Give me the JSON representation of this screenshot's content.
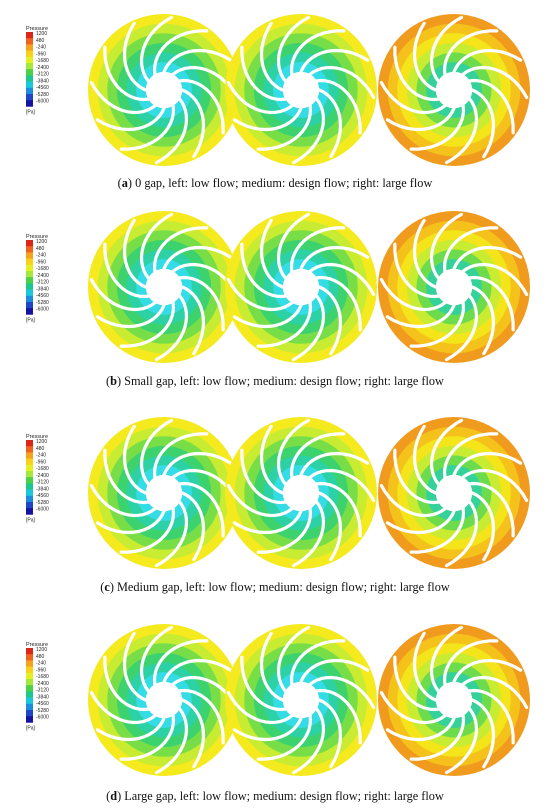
{
  "legend": {
    "title": "Pressure",
    "unit": "[Pa]",
    "ticks": [
      "1200",
      "480",
      "-240",
      "-960",
      "-1680",
      "-2400",
      "-3120",
      "-3840",
      "-4560",
      "-5280",
      "-6000"
    ],
    "colors": [
      "#d9261c",
      "#f0641e",
      "#f5a21e",
      "#f8d21a",
      "#e6f01e",
      "#a8e83c",
      "#4cd24a",
      "#1ec88c",
      "#1ec8dc",
      "#1e8cdc",
      "#1e46c8",
      "#1414a0"
    ]
  },
  "panels": [
    {
      "letter": "a",
      "caption": "0 gap, left: low flow; medium: design flow; right: large flow",
      "impellers": [
        {
          "condition": "low flow",
          "rings": [
            "#f4ea1e",
            "#c8ec32",
            "#78de48",
            "#3cd26e",
            "#2cd2a6",
            "#34dce6"
          ]
        },
        {
          "condition": "design flow",
          "rings": [
            "#f4ea1e",
            "#c8ec32",
            "#78de48",
            "#3cd26e",
            "#2cd2a6",
            "#34dce6"
          ]
        },
        {
          "condition": "large flow",
          "rings": [
            "#f09a1e",
            "#f4c21a",
            "#f4e41a",
            "#c8ec32",
            "#6cdc4c",
            "#34d29a"
          ]
        }
      ]
    },
    {
      "letter": "b",
      "caption": "Small gap, left: low flow; medium: design flow; right: large flow",
      "impellers": [
        {
          "condition": "low flow",
          "rings": [
            "#f4ea1e",
            "#c8ec32",
            "#78de48",
            "#3cd26e",
            "#2cd2a6",
            "#34dce6"
          ]
        },
        {
          "condition": "design flow",
          "rings": [
            "#f4ea1e",
            "#c8ec32",
            "#78de48",
            "#3cd26e",
            "#2cd2a6",
            "#34dce6"
          ]
        },
        {
          "condition": "large flow",
          "rings": [
            "#f09a1e",
            "#f4c21a",
            "#f4e41a",
            "#c8ec32",
            "#6cdc4c",
            "#34d29a"
          ]
        }
      ]
    },
    {
      "letter": "c",
      "caption": "Medium gap, left: low flow; medium: design flow; right: large flow",
      "impellers": [
        {
          "condition": "low flow",
          "rings": [
            "#f4ea1e",
            "#c8ec32",
            "#78de48",
            "#3cd26e",
            "#2cd2a6",
            "#34dce6"
          ]
        },
        {
          "condition": "design flow",
          "rings": [
            "#f4ea1e",
            "#c8ec32",
            "#78de48",
            "#3cd26e",
            "#2cd2a6",
            "#34dce6"
          ]
        },
        {
          "condition": "large flow",
          "rings": [
            "#f09a1e",
            "#f4c21a",
            "#f4e41a",
            "#c8ec32",
            "#6cdc4c",
            "#34d29a"
          ]
        }
      ]
    },
    {
      "letter": "d",
      "caption": "Large gap, left: low flow; medium: design flow; right: large flow",
      "impellers": [
        {
          "condition": "low flow",
          "rings": [
            "#f4ea1e",
            "#c8ec32",
            "#78de48",
            "#3cd26e",
            "#2cd2a6",
            "#34dce6"
          ]
        },
        {
          "condition": "design flow",
          "rings": [
            "#f4ea1e",
            "#c8ec32",
            "#78de48",
            "#3cd26e",
            "#2cd2a6",
            "#34dce6"
          ]
        },
        {
          "condition": "large flow",
          "rings": [
            "#f09a1e",
            "#f4c21a",
            "#f4e41a",
            "#c8ec32",
            "#6cdc4c",
            "#34d29a"
          ]
        }
      ]
    }
  ]
}
